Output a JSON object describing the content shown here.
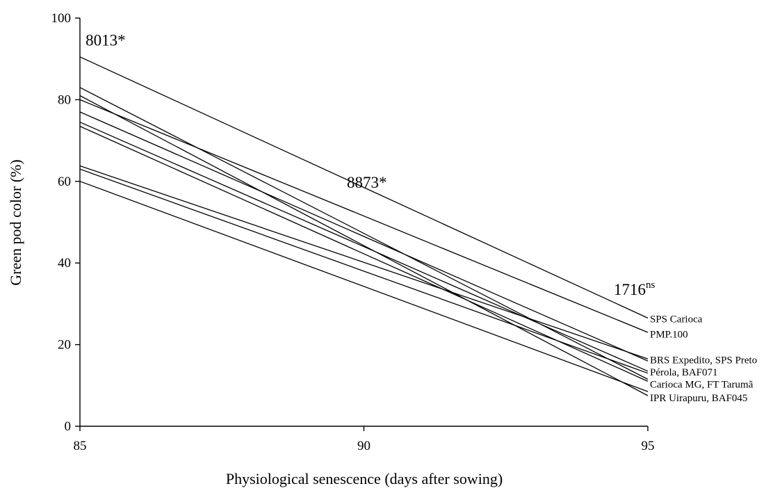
{
  "chart_data": {
    "type": "line",
    "xlabel": "Physiological senescence (days after sowing)",
    "ylabel": "Green pod color (%)",
    "xlim": [
      85,
      95
    ],
    "ylim": [
      0,
      100
    ],
    "x_ticks": [
      85,
      90,
      95
    ],
    "y_ticks": [
      0,
      20,
      40,
      60,
      80,
      100
    ],
    "grid": false,
    "series": [
      {
        "values": [
          [
            85,
            90.5
          ],
          [
            95,
            26.5
          ]
        ]
      },
      {
        "values": [
          [
            85,
            83.0
          ],
          [
            95,
            11.5
          ]
        ]
      },
      {
        "values": [
          [
            85,
            81.0
          ],
          [
            95,
            7.5
          ]
        ]
      },
      {
        "values": [
          [
            85,
            80.0
          ],
          [
            95,
            23.0
          ]
        ]
      },
      {
        "values": [
          [
            85,
            77.0
          ],
          [
            95,
            16.0
          ]
        ]
      },
      {
        "values": [
          [
            85,
            74.5
          ],
          [
            95,
            13.5
          ]
        ]
      },
      {
        "values": [
          [
            85,
            73.5
          ],
          [
            95,
            11.0
          ]
        ]
      },
      {
        "values": [
          [
            85,
            63.8
          ],
          [
            95,
            16.5
          ]
        ]
      },
      {
        "values": [
          [
            85,
            63.0
          ],
          [
            95,
            13.0
          ]
        ]
      },
      {
        "values": [
          [
            85,
            60.0
          ],
          [
            95,
            8.5
          ]
        ]
      }
    ],
    "end_labels": [
      {
        "text": "SPS Carioca",
        "y": 26.3
      },
      {
        "text": "PMP.100",
        "y": 22.6
      },
      {
        "text": "BRS Expedito, SPS Preto",
        "y": 16.3
      },
      {
        "text": "Pérola, BAF071",
        "y": 13.3
      },
      {
        "text": "Carioca MG, FT Tarumã",
        "y": 10.3
      },
      {
        "text": "IPR Uirapuru, BAF045",
        "y": 7.0
      }
    ],
    "annotations": [
      {
        "text": "8013*",
        "x": 85.1,
        "y": 93.3
      },
      {
        "text": "8873*",
        "x": 89.7,
        "y": 58.4
      },
      {
        "text": "1716",
        "superscript": "ns",
        "x": 94.4,
        "y": 32.2
      }
    ]
  }
}
